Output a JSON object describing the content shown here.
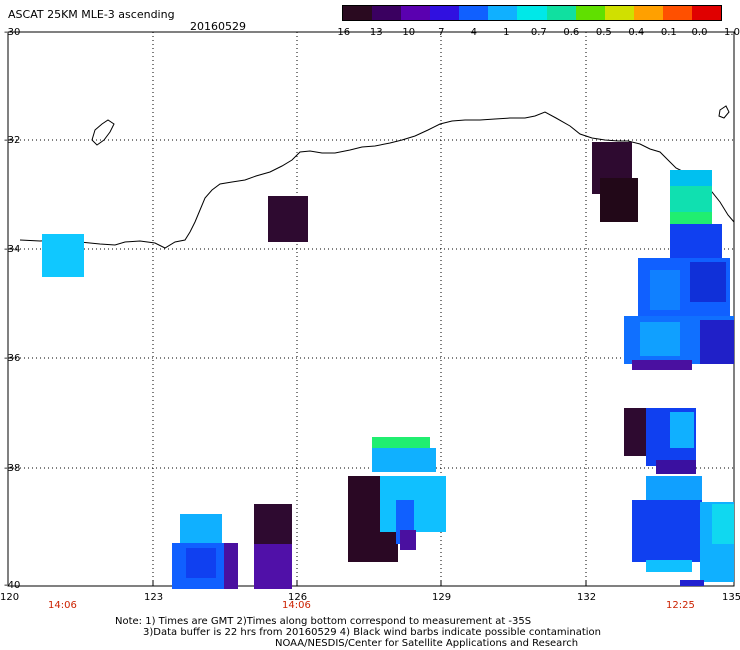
{
  "header": {
    "title": "ASCAT 25KM MLE-3 ascending",
    "date": "20160529"
  },
  "colorbar": {
    "labels": [
      "-16",
      "-13",
      "-10",
      "-7",
      "-4",
      "-1",
      "-0.7",
      "-0.6",
      "-0.5",
      "-0.4",
      "-0.1",
      "0.0",
      "1.0"
    ],
    "colors": [
      "#2a0a20",
      "#3a0060",
      "#5a00b0",
      "#3010e0",
      "#1060ff",
      "#10b0ff",
      "#00e8e8",
      "#10e0a0",
      "#60e000",
      "#d0e000",
      "#ffa000",
      "#ff5000",
      "#e00000"
    ]
  },
  "axes": {
    "y_labels": [
      "-30",
      "-32",
      "-34",
      "-36",
      "-38",
      "-40"
    ],
    "x_labels": [
      "120",
      "123",
      "126",
      "129",
      "132",
      "135"
    ]
  },
  "times": [
    "14:06",
    "14:06",
    "12:25"
  ],
  "notes": {
    "line1": "Note: 1) Times are GMT 2)Times along bottom correspond to measurement at -35S",
    "line2": "3)Data buffer is 22 hrs from 20160529 4) Black wind barbs indicate possible contamination",
    "line3": "NOAA/NESDIS/Center for Satellite Applications and Research"
  }
}
